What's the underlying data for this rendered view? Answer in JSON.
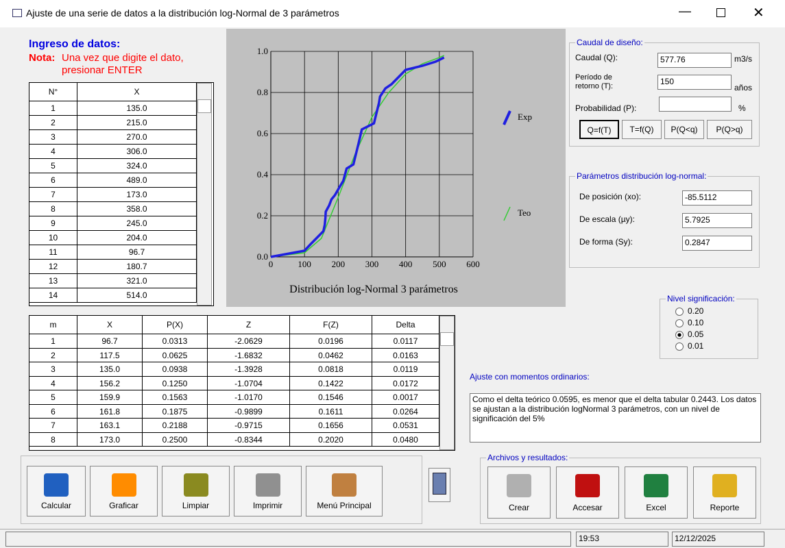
{
  "window": {
    "title": "Ajuste de una serie de datos a la distribución log-Normal de 3 parámetros"
  },
  "input": {
    "title": "Ingreso de datos:",
    "note_label": "Nota:",
    "note_text": "Una vez que digite el dato,",
    "note_text2": "presionar ENTER",
    "headers": [
      "N°",
      "X"
    ],
    "rows": [
      [
        "1",
        "135.0"
      ],
      [
        "2",
        "215.0"
      ],
      [
        "3",
        "270.0"
      ],
      [
        "4",
        "306.0"
      ],
      [
        "5",
        "324.0"
      ],
      [
        "6",
        "489.0"
      ],
      [
        "7",
        "173.0"
      ],
      [
        "8",
        "358.0"
      ],
      [
        "9",
        "245.0"
      ],
      [
        "10",
        "204.0"
      ],
      [
        "11",
        "96.7"
      ],
      [
        "12",
        "180.7"
      ],
      [
        "13",
        "321.0"
      ],
      [
        "14",
        "514.0"
      ]
    ]
  },
  "chart": {
    "type": "line",
    "title": "Distribución log-Normal 3 parámetros",
    "xlim": [
      0,
      600
    ],
    "xticks": [
      0,
      100,
      200,
      300,
      400,
      500,
      600
    ],
    "ylim": [
      0,
      1
    ],
    "yticks": [
      {
        "value": 0,
        "label": "0.0"
      },
      {
        "value": 0.2,
        "label": "0.2"
      },
      {
        "value": 0.4,
        "label": "0.4"
      },
      {
        "value": 0.6,
        "label": "0.6"
      },
      {
        "value": 0.8,
        "label": "0.8"
      },
      {
        "value": 1,
        "label": "1.0"
      }
    ],
    "grid": true,
    "series": [
      {
        "name": "Exp",
        "color": "#1f1fe0",
        "x": [
          0,
          100,
          117,
          135,
          156,
          160,
          162,
          163,
          173,
          180,
          190,
          204,
          215,
          225,
          245,
          260,
          270,
          306,
          321,
          324,
          340,
          358,
          400,
          450,
          489,
          514
        ],
        "values": [
          0,
          0.03,
          0.06,
          0.09,
          0.125,
          0.156,
          0.19,
          0.22,
          0.25,
          0.28,
          0.3,
          0.34,
          0.37,
          0.43,
          0.45,
          0.55,
          0.62,
          0.65,
          0.75,
          0.78,
          0.82,
          0.84,
          0.91,
          0.93,
          0.95,
          0.97
        ]
      },
      {
        "name": "Teo",
        "color": "#33cc33",
        "x": [
          0,
          100,
          150,
          200,
          250,
          300,
          350,
          400,
          450,
          500,
          514
        ],
        "values": [
          0,
          0.02,
          0.09,
          0.29,
          0.5,
          0.68,
          0.8,
          0.89,
          0.94,
          0.97,
          0.98
        ]
      }
    ]
  },
  "results": {
    "headers": [
      "m",
      "X",
      "P(X)",
      "Z",
      "F(Z)",
      "Delta"
    ],
    "rows": [
      [
        "1",
        "96.7",
        "0.0313",
        "-2.0629",
        "0.0196",
        "0.0117"
      ],
      [
        "2",
        "117.5",
        "0.0625",
        "-1.6832",
        "0.0462",
        "0.0163"
      ],
      [
        "3",
        "135.0",
        "0.0938",
        "-1.3928",
        "0.0818",
        "0.0119"
      ],
      [
        "4",
        "156.2",
        "0.1250",
        "-1.0704",
        "0.1422",
        "0.0172"
      ],
      [
        "5",
        "159.9",
        "0.1563",
        "-1.0170",
        "0.1546",
        "0.0017"
      ],
      [
        "6",
        "161.8",
        "0.1875",
        "-0.9899",
        "0.1611",
        "0.0264"
      ],
      [
        "7",
        "163.1",
        "0.2188",
        "-0.9715",
        "0.1656",
        "0.0531"
      ],
      [
        "8",
        "173.0",
        "0.2500",
        "-0.8344",
        "0.2020",
        "0.0480"
      ]
    ]
  },
  "design": {
    "title": "Caudal de diseño:",
    "q_label": "Caudal (Q):",
    "q_value": "577.76",
    "q_unit": "m3/s",
    "t_label": "Período de",
    "t_label2": "retorno (T):",
    "t_value": "150",
    "t_unit": "años",
    "p_label": "Probabilidad (P):",
    "p_unit": "%",
    "buttons": [
      "Q=f(T)",
      "T=f(Q)",
      "P(Q<q)",
      "P(Q>q)"
    ]
  },
  "params": {
    "title": "Parámetros distribución log-normal:",
    "fields": [
      {
        "label": "De posición (xo):",
        "value": "-85.5112"
      },
      {
        "label": "De escala (µy):",
        "value": "5.7925"
      },
      {
        "label": "De forma (Sy):",
        "value": "0.2847"
      }
    ]
  },
  "significance": {
    "title": "Nivel significación:",
    "options": [
      "0.20",
      "0.10",
      "0.05",
      "0.01"
    ],
    "selected": 2
  },
  "fit": {
    "title": "Ajuste con momentos ordinarios:",
    "text": "Como el delta teórico 0.0595, es menor que el delta tabular 0.2443. Los datos se ajustan a la distribución logNormal 3 parámetros, con un nivel de significación del 5%"
  },
  "actions": [
    "Calcular",
    "Graficar",
    "Limpiar",
    "Imprimir",
    "Menú Principal"
  ],
  "files": {
    "title": "Archivos y resultados:",
    "buttons": [
      "Crear",
      "Accesar",
      "Excel",
      "Reporte"
    ]
  },
  "status": {
    "time": "19:53",
    "date": "12/12/2025"
  }
}
